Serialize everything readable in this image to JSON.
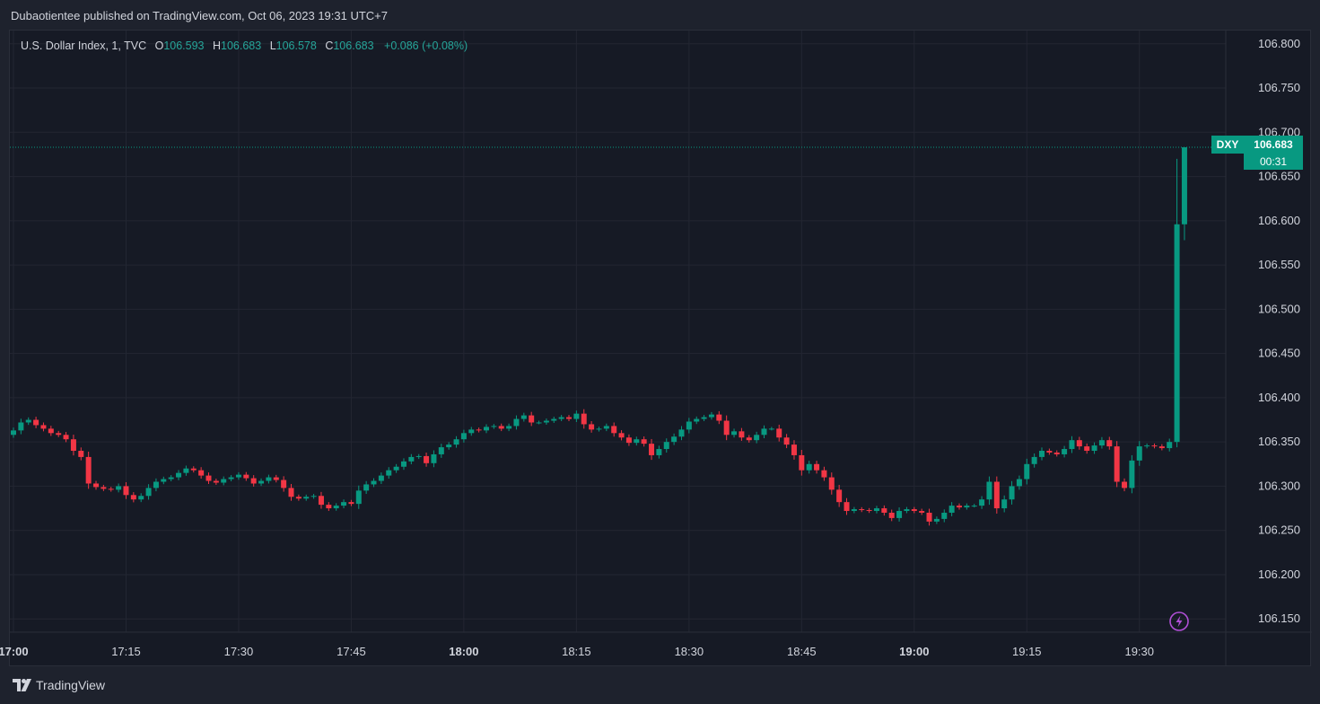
{
  "header": {
    "published": "Dubaotientee published on TradingView.com, Oct 06, 2023 19:31 UTC+7"
  },
  "legend": {
    "symbol": "U.S. Dollar Index, 1, TVC",
    "o_label": "O",
    "o_value": "106.593",
    "h_label": "H",
    "h_value": "106.683",
    "l_label": "L",
    "l_value": "106.578",
    "c_label": "C",
    "c_value": "106.683",
    "change": "+0.086 (+0.08%)"
  },
  "price_tag": {
    "symbol": "DXY",
    "price": "106.683",
    "countdown": "00:31"
  },
  "footer": {
    "brand": "TradingView"
  },
  "colors": {
    "up": "#089981",
    "down": "#f23645",
    "bg": "#161a25",
    "grid": "#232632",
    "axis_text": "#d1d4dc"
  },
  "chart_data": {
    "type": "candlestick",
    "title": "U.S. Dollar Index, 1, TVC",
    "ylim": [
      106.135,
      106.815
    ],
    "y_ticks": [
      "106.800",
      "106.750",
      "106.700",
      "106.650",
      "106.600",
      "106.550",
      "106.500",
      "106.450",
      "106.400",
      "106.350",
      "106.300",
      "106.250",
      "106.200",
      "106.150"
    ],
    "x_ticks": [
      {
        "label": "17:00",
        "minute": 0,
        "bold": true
      },
      {
        "label": "17:15",
        "minute": 15
      },
      {
        "label": "17:30",
        "minute": 30
      },
      {
        "label": "17:45",
        "minute": 45
      },
      {
        "label": "18:00",
        "minute": 60,
        "bold": true
      },
      {
        "label": "18:15",
        "minute": 75
      },
      {
        "label": "18:30",
        "minute": 90
      },
      {
        "label": "18:45",
        "minute": 105
      },
      {
        "label": "19:00",
        "minute": 120,
        "bold": true
      },
      {
        "label": "19:15",
        "minute": 135
      },
      {
        "label": "19:30",
        "minute": 150
      }
    ],
    "last_price": 106.683,
    "closes": [
      106.363,
      106.372,
      106.375,
      106.369,
      106.365,
      106.36,
      106.358,
      106.353,
      106.34,
      106.333,
      106.303,
      106.299,
      106.297,
      106.296,
      106.3,
      106.29,
      106.285,
      106.289,
      106.298,
      106.305,
      106.308,
      106.31,
      106.315,
      106.32,
      106.318,
      106.312,
      106.306,
      106.304,
      106.308,
      106.31,
      106.313,
      106.309,
      106.303,
      106.306,
      106.31,
      106.307,
      106.298,
      106.288,
      106.286,
      106.288,
      106.289,
      106.279,
      106.275,
      106.278,
      106.282,
      106.28,
      106.295,
      106.302,
      106.306,
      106.312,
      106.318,
      106.322,
      106.328,
      106.333,
      106.334,
      106.326,
      106.336,
      106.344,
      106.347,
      106.353,
      106.36,
      106.364,
      106.363,
      106.367,
      106.368,
      106.365,
      106.368,
      106.376,
      106.38,
      106.372,
      106.372,
      106.374,
      106.376,
      106.378,
      106.376,
      106.382,
      106.37,
      106.364,
      106.365,
      106.368,
      106.36,
      106.355,
      106.349,
      106.353,
      106.348,
      106.335,
      106.342,
      106.35,
      106.356,
      106.364,
      106.373,
      106.376,
      106.378,
      106.381,
      106.374,
      106.358,
      106.362,
      106.355,
      106.352,
      106.358,
      106.365,
      106.365,
      106.355,
      106.347,
      106.335,
      106.318,
      106.325,
      106.318,
      106.31,
      106.296,
      106.282,
      106.272,
      106.274,
      106.273,
      106.272,
      106.275,
      106.27,
      106.264,
      106.272,
      106.274,
      106.272,
      106.27,
      106.26,
      106.263,
      106.27,
      106.278,
      106.276,
      106.278,
      106.278,
      106.285,
      106.305,
      106.275,
      106.285,
      106.3,
      106.308,
      106.325,
      106.333,
      106.34,
      106.338,
      106.336,
      106.342,
      106.352,
      106.345,
      106.34,
      106.346,
      106.352,
      106.345,
      106.305,
      106.298,
      106.329,
      106.345,
      106.346,
      106.345,
      106.343,
      106.35,
      106.596,
      106.683
    ]
  }
}
